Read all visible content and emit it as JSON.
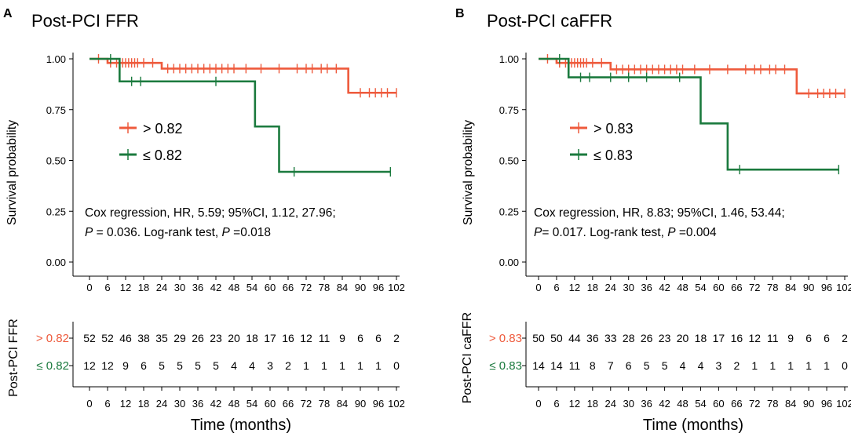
{
  "panels": [
    {
      "letter": "A",
      "title": "Post-PCI FFR",
      "legend": [
        {
          "symbol": "+",
          "label": "> 0.82"
        },
        {
          "symbol": "+",
          "label": "≤ 0.82"
        }
      ],
      "annotation": {
        "line1": "Cox regression, HR, 5.59; 95%CI, 1.12, 27.96;",
        "line2_p": "P",
        "line2_rest": " = 0.036. Log-rank test, ",
        "line2_p2": "P",
        "line2_end": " =0.018"
      },
      "risk_table": {
        "ylabel": "Post-PCI FFR",
        "rows": [
          {
            "label": "> 0.82",
            "color": "#EE5A3C",
            "counts": [
              "52",
              "52",
              "46",
              "38",
              "35",
              "29",
              "26",
              "23",
              "20",
              "18",
              "17",
              "16",
              "12",
              "11",
              "9",
              "6",
              "6",
              "2"
            ]
          },
          {
            "label": "≤ 0.82",
            "color": "#1B7A3E",
            "counts": [
              "12",
              "12",
              "9",
              "6",
              "5",
              "5",
              "5",
              "5",
              "4",
              "4",
              "3",
              "2",
              "1",
              "1",
              "1",
              "1",
              "1",
              "0"
            ]
          }
        ]
      }
    },
    {
      "letter": "B",
      "title": "Post-PCI caFFR",
      "legend": [
        {
          "symbol": "+",
          "label": "> 0.83"
        },
        {
          "symbol": "+",
          "label": "≤ 0.83"
        }
      ],
      "annotation": {
        "line1": "Cox regression, HR, 8.83; 95%CI, 1.46, 53.44;",
        "line2_p": "P",
        "line2_rest": "= 0.017. Log-rank test, ",
        "line2_p2": "P",
        "line2_end": " =0.004"
      },
      "risk_table": {
        "ylabel": "Post-PCI caFFR",
        "rows": [
          {
            "label": "> 0.83",
            "color": "#EE5A3C",
            "counts": [
              "50",
              "50",
              "44",
              "36",
              "33",
              "28",
              "26",
              "23",
              "20",
              "18",
              "17",
              "16",
              "12",
              "11",
              "9",
              "6",
              "6",
              "2"
            ]
          },
          {
            "label": "≤ 0.83",
            "color": "#1B7A3E",
            "counts": [
              "14",
              "14",
              "11",
              "8",
              "7",
              "6",
              "5",
              "5",
              "4",
              "4",
              "3",
              "2",
              "1",
              "1",
              "1",
              "1",
              "1",
              "0"
            ]
          }
        ]
      }
    }
  ],
  "chart_data": [
    {
      "type": "line",
      "subtype": "kaplan-meier step",
      "title": "Post-PCI FFR",
      "xlabel": "Time (months)",
      "ylabel": "Survival probability",
      "xlim": [
        0,
        102
      ],
      "ylim": [
        0,
        1
      ],
      "x_ticks": [
        "0",
        "6",
        "12",
        "18",
        "24",
        "30",
        "36",
        "42",
        "48",
        "54",
        "60",
        "66",
        "72",
        "78",
        "84",
        "90",
        "96",
        "102"
      ],
      "y_ticks": [
        "0.00",
        "0.25",
        "0.50",
        "0.75",
        "1.00"
      ],
      "series": [
        {
          "name": "> 0.82",
          "color": "#EE5A3C",
          "steps": [
            [
              0,
              1.0
            ],
            [
              6,
              0.98
            ],
            [
              24,
              0.952
            ],
            [
              86,
              0.833
            ],
            [
              102,
              0.833
            ]
          ],
          "censor_times": [
            3,
            7,
            9,
            11,
            12,
            13,
            14,
            15,
            16,
            18,
            21,
            26,
            28,
            30,
            32,
            34,
            36,
            38,
            40,
            42,
            44,
            46,
            48,
            52,
            57,
            63,
            69,
            72,
            74,
            77,
            79,
            82,
            90,
            93,
            95,
            97,
            99,
            102
          ]
        },
        {
          "name": "≤ 0.82",
          "color": "#1B7A3E",
          "steps": [
            [
              0,
              1.0
            ],
            [
              10,
              0.889
            ],
            [
              55,
              0.667
            ],
            [
              63,
              0.444
            ],
            [
              100,
              0.444
            ]
          ],
          "censor_times": [
            7,
            14,
            17,
            42,
            68,
            100
          ]
        }
      ]
    },
    {
      "type": "line",
      "subtype": "kaplan-meier step",
      "title": "Post-PCI caFFR",
      "xlabel": "Time (months)",
      "ylabel": "Survival probability",
      "xlim": [
        0,
        102
      ],
      "ylim": [
        0,
        1
      ],
      "x_ticks": [
        "0",
        "6",
        "12",
        "18",
        "24",
        "30",
        "36",
        "42",
        "48",
        "54",
        "60",
        "66",
        "72",
        "78",
        "84",
        "90",
        "96",
        "102"
      ],
      "y_ticks": [
        "0.00",
        "0.25",
        "0.50",
        "0.75",
        "1.00"
      ],
      "series": [
        {
          "name": "> 0.83",
          "color": "#EE5A3C",
          "steps": [
            [
              0,
              1.0
            ],
            [
              6,
              0.98
            ],
            [
              24,
              0.948
            ],
            [
              86,
              0.83
            ],
            [
              102,
              0.83
            ]
          ],
          "censor_times": [
            3,
            7,
            9,
            11,
            12,
            13,
            14,
            15,
            16,
            18,
            21,
            26,
            28,
            30,
            32,
            34,
            36,
            38,
            40,
            42,
            44,
            46,
            48,
            52,
            57,
            63,
            69,
            72,
            74,
            77,
            79,
            82,
            90,
            93,
            95,
            97,
            99,
            102
          ]
        },
        {
          "name": "≤ 0.83",
          "color": "#1B7A3E",
          "steps": [
            [
              0,
              1.0
            ],
            [
              10,
              0.909
            ],
            [
              54,
              0.682
            ],
            [
              63,
              0.455
            ],
            [
              100,
              0.455
            ]
          ],
          "censor_times": [
            7,
            14,
            17,
            24,
            30,
            36,
            47,
            67,
            100
          ]
        }
      ]
    }
  ]
}
